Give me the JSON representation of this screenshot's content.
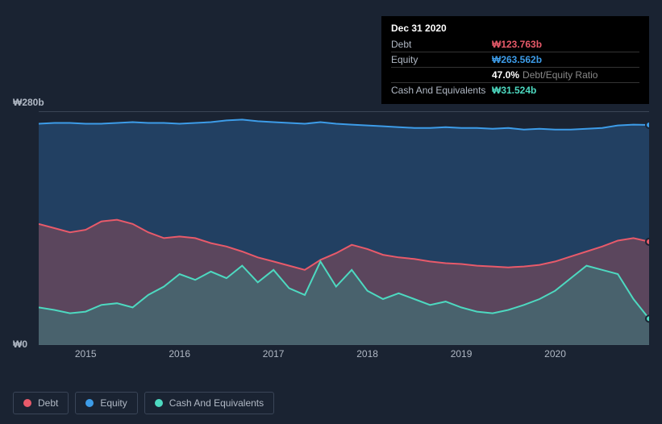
{
  "tooltip": {
    "date": "Dec 31 2020",
    "rows": [
      {
        "label": "Debt",
        "value": "₩123.763b",
        "cls": "debt"
      },
      {
        "label": "Equity",
        "value": "₩263.562b",
        "cls": "equity"
      },
      {
        "label": "",
        "value": "47.0%",
        "suffix": "Debt/Equity Ratio",
        "cls": "ratio"
      },
      {
        "label": "Cash And Equivalents",
        "value": "₩31.524b",
        "cls": "cash"
      }
    ]
  },
  "chart": {
    "type": "area",
    "background": "#1a2332",
    "grid_color": "#5a6578",
    "ylim": [
      0,
      280
    ],
    "y_unit": "b",
    "y_currency": "₩",
    "y_labels": {
      "top": "₩280b",
      "bottom": "₩0"
    },
    "x_start_year": 2014.5,
    "x_end_year": 2021.0,
    "x_ticks": [
      2015,
      2016,
      2017,
      2018,
      2019,
      2020
    ],
    "series": {
      "equity": {
        "color": "#3d9ce8",
        "fill": "#2a5a8a",
        "values": [
          265,
          266,
          266,
          265,
          265,
          266,
          267,
          266,
          266,
          265,
          266,
          267,
          269,
          270,
          268,
          267,
          266,
          265,
          267,
          265,
          264,
          263,
          262,
          261,
          260,
          260,
          261,
          260,
          260,
          259,
          260,
          258,
          259,
          258,
          258,
          259,
          260,
          263,
          264,
          263.562
        ]
      },
      "debt": {
        "color": "#e85a6a",
        "fill": "#8a4a5a",
        "values": [
          145,
          140,
          135,
          138,
          148,
          150,
          145,
          135,
          128,
          130,
          128,
          122,
          118,
          112,
          105,
          100,
          95,
          90,
          102,
          110,
          120,
          115,
          108,
          105,
          103,
          100,
          98,
          97,
          95,
          94,
          93,
          94,
          96,
          100,
          106,
          112,
          118,
          125,
          128,
          123.763
        ]
      },
      "cash": {
        "color": "#4dd9c0",
        "fill": "#3a7a7a",
        "values": [
          45,
          42,
          38,
          40,
          48,
          50,
          45,
          60,
          70,
          85,
          78,
          88,
          80,
          95,
          75,
          90,
          68,
          60,
          100,
          70,
          90,
          65,
          55,
          62,
          55,
          48,
          52,
          45,
          40,
          38,
          42,
          48,
          55,
          65,
          80,
          95,
          90,
          85,
          55,
          31.524
        ]
      }
    },
    "end_markers": true
  },
  "legend": {
    "items": [
      {
        "label": "Debt",
        "color": "#e85a6a"
      },
      {
        "label": "Equity",
        "color": "#3d9ce8"
      },
      {
        "label": "Cash And Equivalents",
        "color": "#4dd9c0"
      }
    ]
  }
}
